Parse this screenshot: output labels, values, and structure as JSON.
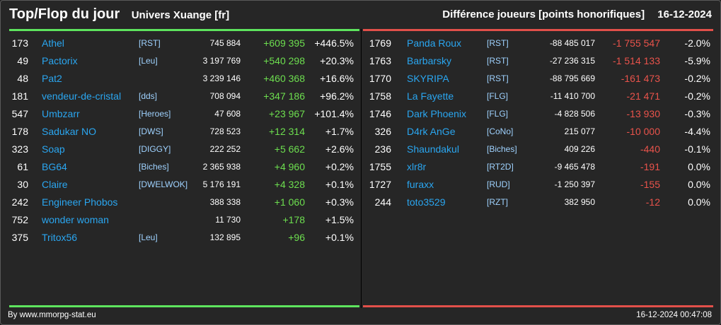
{
  "header": {
    "title": "Top/Flop du jour",
    "universe": "Univers Xuange [fr]",
    "subtitle": "Différence joueurs [points honorifiques]",
    "date": "16-12-2024"
  },
  "colors": {
    "positive": "#6ddf4f",
    "negative": "#e9534b",
    "name": "#2aa6f0",
    "top_line": "#5ee45e",
    "flop_line": "#e2504a"
  },
  "top": [
    {
      "rank": "173",
      "name": "Athel",
      "alliance": "[RST]",
      "points": "745 884",
      "diff": "+609 395",
      "pct": "+446.5%"
    },
    {
      "rank": "49",
      "name": "Pactorix",
      "alliance": "[Leu]",
      "points": "3 197 769",
      "diff": "+540 298",
      "pct": "+20.3%"
    },
    {
      "rank": "48",
      "name": "Pat2",
      "alliance": "",
      "points": "3 239 146",
      "diff": "+460 368",
      "pct": "+16.6%"
    },
    {
      "rank": "181",
      "name": "vendeur-de-cristal",
      "alliance": "[dds]",
      "points": "708 094",
      "diff": "+347 186",
      "pct": "+96.2%"
    },
    {
      "rank": "547",
      "name": "Umbzarr",
      "alliance": "[Heroes]",
      "points": "47 608",
      "diff": "+23 967",
      "pct": "+101.4%"
    },
    {
      "rank": "178",
      "name": "Sadukar NO",
      "alliance": "[DWS]",
      "points": "728 523",
      "diff": "+12 314",
      "pct": "+1.7%"
    },
    {
      "rank": "323",
      "name": "Soap",
      "alliance": "[DIGGY]",
      "points": "222 252",
      "diff": "+5 662",
      "pct": "+2.6%"
    },
    {
      "rank": "61",
      "name": "BG64",
      "alliance": "[Biches]",
      "points": "2 365 938",
      "diff": "+4 960",
      "pct": "+0.2%"
    },
    {
      "rank": "30",
      "name": "Claire",
      "alliance": "[DWELWOK]",
      "points": "5 176 191",
      "diff": "+4 328",
      "pct": "+0.1%"
    },
    {
      "rank": "242",
      "name": "Engineer Phobos",
      "alliance": "",
      "points": "388 338",
      "diff": "+1 060",
      "pct": "+0.3%"
    },
    {
      "rank": "752",
      "name": "wonder woman",
      "alliance": "",
      "points": "11 730",
      "diff": "+178",
      "pct": "+1.5%"
    },
    {
      "rank": "375",
      "name": "Tritox56",
      "alliance": "[Leu]",
      "points": "132 895",
      "diff": "+96",
      "pct": "+0.1%"
    }
  ],
  "flop": [
    {
      "rank": "1769",
      "name": "Panda Roux",
      "alliance": "[RST]",
      "points": "-88 485 017",
      "diff": "-1 755 547",
      "pct": "-2.0%"
    },
    {
      "rank": "1763",
      "name": "Barbarsky",
      "alliance": "[RST]",
      "points": "-27 236 315",
      "diff": "-1 514 133",
      "pct": "-5.9%"
    },
    {
      "rank": "1770",
      "name": "SKYRIPA",
      "alliance": "[RST]",
      "points": "-88 795 669",
      "diff": "-161 473",
      "pct": "-0.2%"
    },
    {
      "rank": "1758",
      "name": "La Fayette",
      "alliance": "[FLG]",
      "points": "-11 410 700",
      "diff": "-21 471",
      "pct": "-0.2%"
    },
    {
      "rank": "1746",
      "name": "Dark Phoenix",
      "alliance": "[FLG]",
      "points": "-4 828 506",
      "diff": "-13 930",
      "pct": "-0.3%"
    },
    {
      "rank": "326",
      "name": "D4rk AnGe",
      "alliance": "[CoNo]",
      "points": "215 077",
      "diff": "-10 000",
      "pct": "-4.4%"
    },
    {
      "rank": "236",
      "name": "Shaundakul",
      "alliance": "[Biches]",
      "points": "409 226",
      "diff": "-440",
      "pct": "-0.1%"
    },
    {
      "rank": "1755",
      "name": "xlr8r",
      "alliance": "[RT2D]",
      "points": "-9 465 478",
      "diff": "-191",
      "pct": "0.0%"
    },
    {
      "rank": "1727",
      "name": "furaxx",
      "alliance": "[RUD]",
      "points": "-1 250 397",
      "diff": "-155",
      "pct": "0.0%"
    },
    {
      "rank": "244",
      "name": "toto3529",
      "alliance": "[RZT]",
      "points": "382 950",
      "diff": "-12",
      "pct": "0.0%"
    }
  ],
  "footer": {
    "source": "By www.mmorpg-stat.eu",
    "timestamp": "16-12-2024 00:47:08"
  }
}
